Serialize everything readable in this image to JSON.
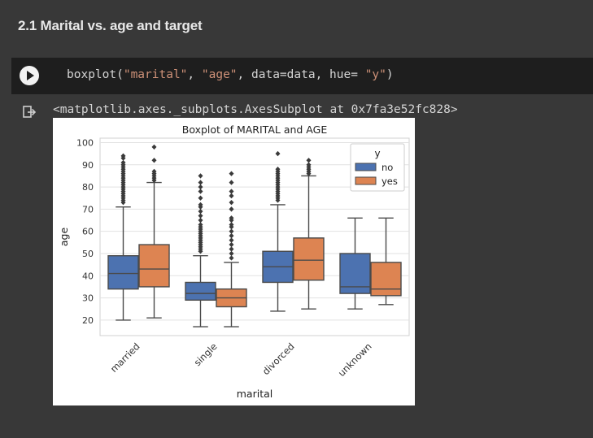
{
  "section": {
    "title": "2.1 Marital vs. age and target"
  },
  "cell": {
    "code_prefix": "boxplot(",
    "arg1": "\"marital\"",
    "sep1": ", ",
    "arg2": "\"age\"",
    "middle": ", data=data, hue= ",
    "arg3": "\"y\"",
    "code_suffix": ")",
    "run_icon": "play-icon"
  },
  "output": {
    "icon": "output-arrow-icon",
    "text": "<matplotlib.axes._subplots.AxesSubplot at 0x7fa3e52fc828>"
  },
  "chart_data": {
    "type": "box",
    "title": "Boxplot of  MARITAL and  AGE",
    "xlabel": "marital",
    "ylabel": "age",
    "ylim": [
      13,
      102
    ],
    "yticks": [
      20,
      30,
      40,
      50,
      60,
      70,
      80,
      90,
      100
    ],
    "categories": [
      "married",
      "single",
      "divorced",
      "unknown"
    ],
    "legend": {
      "title": "y",
      "position": "top-right"
    },
    "grid": true,
    "series": [
      {
        "name": "no",
        "color": "#4c72b0",
        "boxes": [
          {
            "whisker_low": 20,
            "q1": 34,
            "median": 41,
            "q3": 49,
            "whisker_high": 71,
            "outliers": [
              73,
              74,
              75,
              76,
              77,
              78,
              79,
              80,
              81,
              82,
              83,
              84,
              85,
              86,
              87,
              88,
              89,
              90,
              91,
              93,
              94
            ]
          },
          {
            "whisker_low": 17,
            "q1": 29,
            "median": 32,
            "q3": 37,
            "whisker_high": 49,
            "outliers": [
              51,
              52,
              53,
              54,
              55,
              56,
              57,
              58,
              59,
              60,
              61,
              62,
              63,
              65,
              67,
              69,
              71,
              72,
              75,
              78,
              80,
              82,
              85
            ]
          },
          {
            "whisker_low": 24,
            "q1": 37,
            "median": 44,
            "q3": 51,
            "whisker_high": 72,
            "outliers": [
              74,
              75,
              76,
              77,
              78,
              79,
              80,
              81,
              82,
              83,
              84,
              85,
              86,
              87,
              88,
              95
            ]
          },
          {
            "whisker_low": 25,
            "q1": 32,
            "median": 35,
            "q3": 50,
            "whisker_high": 66,
            "outliers": []
          }
        ]
      },
      {
        "name": "yes",
        "color": "#dd8452",
        "boxes": [
          {
            "whisker_low": 21,
            "q1": 35,
            "median": 43,
            "q3": 54,
            "whisker_high": 82,
            "outliers": [
              83,
              84,
              85,
              86,
              87,
              92,
              98
            ]
          },
          {
            "whisker_low": 17,
            "q1": 26,
            "median": 30,
            "q3": 34,
            "whisker_high": 46,
            "outliers": [
              48,
              50,
              52,
              54,
              56,
              58,
              60,
              62,
              63,
              65,
              66,
              70,
              73,
              76,
              78,
              82,
              86
            ]
          },
          {
            "whisker_low": 25,
            "q1": 38,
            "median": 47,
            "q3": 57,
            "whisker_high": 85,
            "outliers": [
              86,
              87,
              88,
              89,
              90,
              92
            ]
          },
          {
            "whisker_low": 27,
            "q1": 31,
            "median": 34,
            "q3": 46,
            "whisker_high": 66,
            "outliers": []
          }
        ]
      }
    ]
  }
}
